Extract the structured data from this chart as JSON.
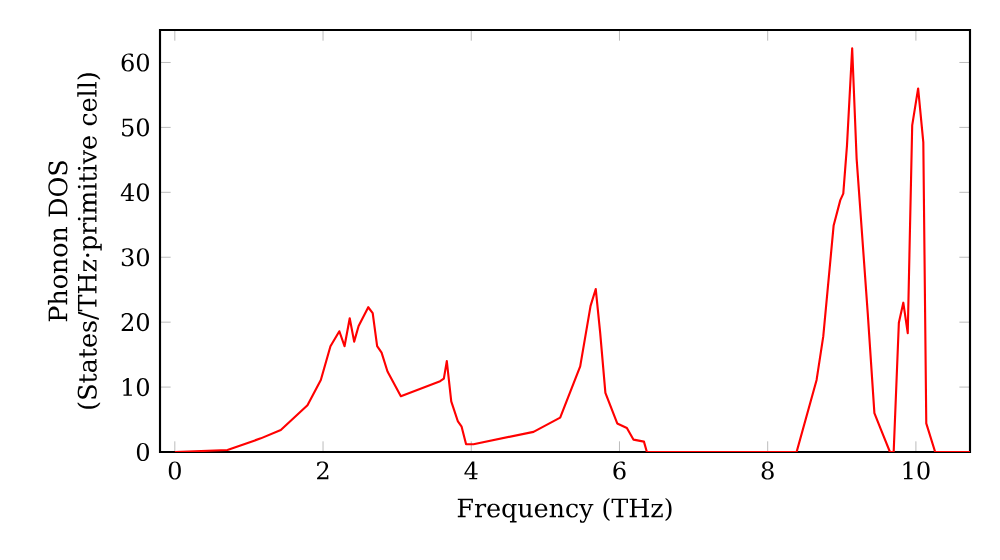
{
  "chart_data": {
    "type": "line",
    "xlabel": "Frequency (THz)",
    "ylabel": "Phonon DOS (States/THz·primitive cell)",
    "color": "#ff0000",
    "x": [
      0,
      0.71,
      1.16,
      1.43,
      1.79,
      1.97,
      2.1,
      2.22,
      2.29,
      2.36,
      2.42,
      2.48,
      2.61,
      2.67,
      2.73,
      2.79,
      2.87,
      3.05,
      3.58,
      3.63,
      3.67,
      3.73,
      3.82,
      3.87,
      3.93,
      4.03,
      4.84,
      5.2,
      5.47,
      5.61,
      5.68,
      5.74,
      5.81,
      5.97,
      6.1,
      6.19,
      6.33,
      6.37,
      8.39,
      8.66,
      8.75,
      8.89,
      8.98,
      9.02,
      9.07,
      9.14,
      9.2,
      9.35,
      9.44,
      9.53,
      9.65,
      9.7,
      9.77,
      9.83,
      9.89,
      9.95,
      10.03,
      10.1,
      10.14,
      10.26,
      10.73
    ],
    "values": [
      0,
      0.3,
      2.1,
      3.4,
      7.2,
      11.1,
      16.3,
      18.6,
      16.3,
      20.6,
      17,
      19.4,
      22.3,
      21.4,
      16.3,
      15.3,
      12.4,
      8.6,
      10.9,
      11.3,
      14,
      7.8,
      4.7,
      3.9,
      1.2,
      1.2,
      3.1,
      5.3,
      13.2,
      22.5,
      25.1,
      18.3,
      9.1,
      4.4,
      3.7,
      1.9,
      1.6,
      0,
      0,
      11.1,
      17.8,
      34.9,
      38.8,
      39.8,
      47.2,
      62.2,
      45.2,
      21.4,
      6,
      3.4,
      0,
      0,
      19.9,
      23,
      18.3,
      50.3,
      56,
      47.7,
      4.4,
      0,
      0
    ],
    "xlim": [
      -0.2,
      10.73
    ],
    "ylim": [
      0,
      65
    ],
    "xticks": [
      0,
      2,
      4,
      6,
      8,
      10
    ],
    "yticks": [
      0,
      10,
      20,
      30,
      40,
      50,
      60
    ]
  }
}
